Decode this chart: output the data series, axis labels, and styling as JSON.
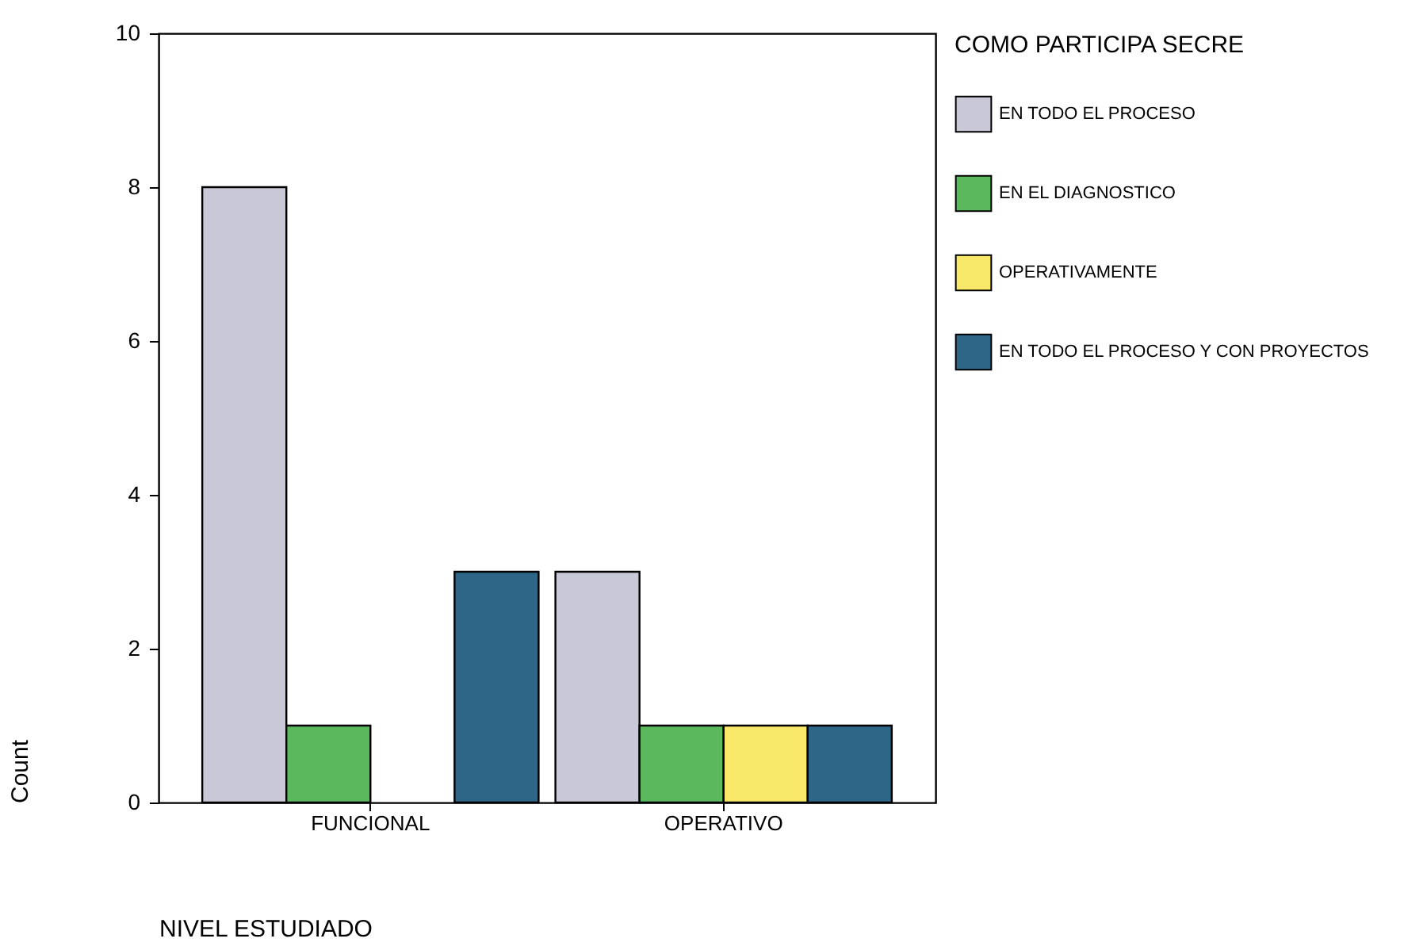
{
  "chart_data": {
    "type": "bar",
    "xlabel": "NIVEL ESTUDIADO",
    "ylabel": "Count",
    "legend_title": "COMO PARTICIPA SECRE",
    "categories": [
      "FUNCIONAL",
      "OPERATIVO"
    ],
    "series": [
      {
        "name": "EN TODO EL PROCESO",
        "color": "#c8c8d6",
        "values": [
          8,
          3
        ]
      },
      {
        "name": "EN EL DIAGNOSTICO",
        "color": "#5cb85c",
        "values": [
          1,
          1
        ]
      },
      {
        "name": "OPERATIVAMENTE",
        "color": "#f8e86a",
        "values": [
          null,
          1
        ]
      },
      {
        "name": "EN TODO EL PROCESO Y CON PROYECTOS",
        "color": "#2e6688",
        "values": [
          3,
          1
        ]
      }
    ],
    "ylim": [
      0,
      10
    ],
    "yticks": [
      0,
      2,
      4,
      6,
      8,
      10
    ],
    "grid": false,
    "legend": "right"
  }
}
